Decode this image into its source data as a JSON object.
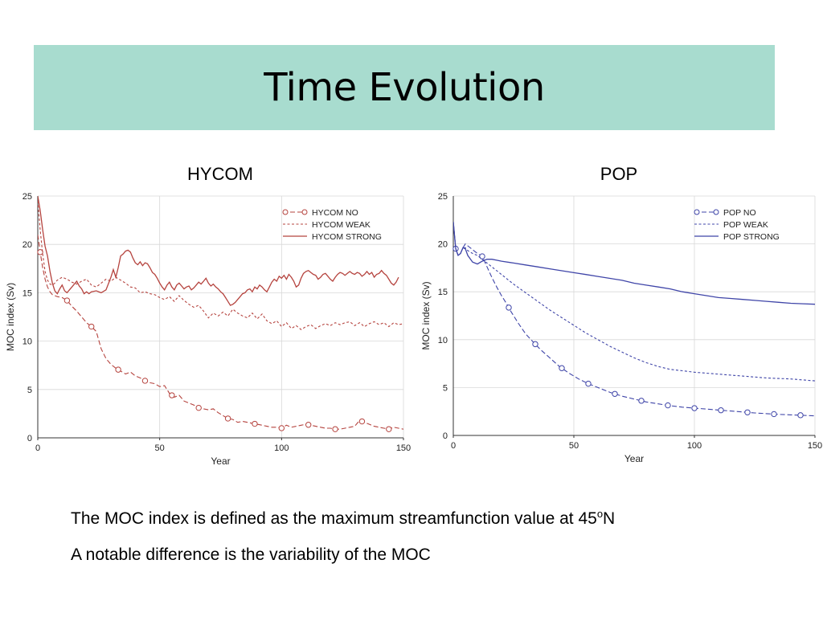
{
  "slide": {
    "title": "Time Evolution",
    "notes": {
      "line1_main": "The MOC index is defined as the maximum streamfunction value at 45",
      "line1_sup": "o",
      "line1_end": "N",
      "line2": "A notable difference is the variability of the MOC"
    }
  },
  "chart_data": [
    {
      "type": "line",
      "title": "HYCOM",
      "xlabel": "Year",
      "ylabel": "MOC index (Sv)",
      "xlim": [
        0,
        150
      ],
      "ylim": [
        0,
        25
      ],
      "xticks": [
        0,
        50,
        100,
        150
      ],
      "yticks": [
        0,
        5,
        10,
        15,
        20,
        25
      ],
      "grid": true,
      "legend_position": "top-right",
      "color": "#b5433e",
      "series": [
        {
          "name": "HYCOM NO",
          "style": "dashed-markers",
          "x": [
            0,
            1,
            2,
            3,
            4,
            5,
            6,
            8,
            10,
            12,
            14,
            16,
            18,
            20,
            22,
            24,
            26,
            28,
            30,
            32,
            34,
            36,
            38,
            40,
            42,
            44,
            46,
            48,
            50,
            52,
            54,
            56,
            58,
            60,
            62,
            64,
            66,
            68,
            70,
            72,
            74,
            76,
            78,
            80,
            82,
            84,
            86,
            88,
            90,
            92,
            94,
            96,
            98,
            100,
            102,
            104,
            106,
            108,
            110,
            112,
            114,
            116,
            118,
            120,
            122,
            124,
            126,
            128,
            130,
            132,
            134,
            136,
            138,
            140,
            142,
            144,
            146,
            148,
            150
          ],
          "values": [
            21.0,
            19.2,
            17.6,
            16.4,
            15.6,
            15.1,
            14.8,
            14.6,
            14.5,
            14.2,
            13.6,
            13.1,
            12.5,
            11.9,
            11.5,
            11.0,
            9.2,
            8.2,
            7.6,
            7.2,
            6.9,
            6.6,
            6.8,
            6.4,
            6.2,
            5.9,
            5.7,
            5.6,
            5.3,
            5.4,
            4.6,
            4.2,
            4.4,
            3.8,
            3.6,
            3.4,
            3.1,
            3.0,
            2.9,
            3.0,
            2.6,
            2.3,
            2.0,
            1.9,
            1.6,
            1.7,
            1.6,
            1.5,
            1.4,
            1.3,
            1.2,
            1.1,
            1.1,
            1.0,
            1.3,
            1.1,
            1.2,
            1.3,
            1.4,
            1.3,
            1.2,
            1.1,
            1.0,
            1.0,
            0.9,
            0.9,
            1.0,
            1.1,
            1.2,
            1.8,
            1.6,
            1.4,
            1.2,
            1.1,
            1.0,
            0.9,
            1.1,
            1.0,
            0.9
          ],
          "marker_x": [
            1,
            12,
            22,
            33,
            44,
            55,
            66,
            78,
            89,
            100,
            111,
            122,
            133,
            144
          ]
        },
        {
          "name": "HYCOM WEAK",
          "style": "dashed",
          "x": [
            0,
            1,
            2,
            3,
            4,
            5,
            6,
            7,
            8,
            10,
            12,
            14,
            16,
            18,
            20,
            22,
            24,
            26,
            28,
            30,
            32,
            34,
            36,
            38,
            40,
            42,
            44,
            46,
            48,
            50,
            52,
            54,
            56,
            58,
            60,
            62,
            64,
            66,
            68,
            70,
            72,
            74,
            76,
            78,
            80,
            82,
            84,
            86,
            88,
            90,
            92,
            94,
            96,
            98,
            100,
            102,
            104,
            106,
            108,
            110,
            112,
            114,
            116,
            118,
            120,
            122,
            124,
            126,
            128,
            130,
            132,
            134,
            136,
            138,
            140,
            142,
            144,
            146,
            148,
            150
          ],
          "values": [
            24.5,
            21.5,
            19.0,
            17.2,
            16.3,
            15.9,
            15.8,
            16.0,
            16.3,
            16.6,
            16.4,
            16.1,
            15.9,
            16.2,
            16.4,
            15.8,
            15.6,
            16.0,
            16.4,
            16.2,
            16.6,
            16.3,
            16.0,
            15.6,
            15.5,
            15.0,
            15.1,
            14.9,
            14.8,
            14.5,
            14.3,
            14.6,
            14.1,
            14.7,
            14.2,
            13.8,
            13.5,
            13.7,
            13.1,
            12.4,
            12.9,
            12.6,
            13.0,
            12.6,
            13.3,
            12.9,
            12.6,
            12.4,
            12.9,
            12.3,
            12.8,
            12.1,
            11.8,
            12.1,
            11.5,
            11.9,
            11.3,
            11.6,
            11.2,
            11.5,
            11.7,
            11.3,
            11.6,
            11.8,
            11.6,
            11.9,
            11.7,
            11.9,
            12.0,
            11.6,
            11.9,
            11.5,
            11.8,
            12.0,
            11.7,
            11.9,
            11.5,
            11.9,
            11.7,
            11.8
          ]
        },
        {
          "name": "HYCOM STRONG",
          "style": "solid",
          "x": [
            0,
            1,
            2,
            3,
            4,
            5,
            6,
            7,
            8,
            9,
            10,
            11,
            12,
            13,
            14,
            15,
            16,
            17,
            18,
            19,
            20,
            21,
            22,
            24,
            26,
            28,
            30,
            31,
            32,
            33,
            34,
            35,
            36,
            37,
            38,
            39,
            40,
            41,
            42,
            43,
            44,
            45,
            46,
            47,
            48,
            49,
            50,
            51,
            52,
            53,
            54,
            55,
            56,
            57,
            58,
            59,
            60,
            61,
            62,
            63,
            64,
            65,
            66,
            67,
            68,
            69,
            70,
            71,
            72,
            73,
            74,
            75,
            76,
            77,
            78,
            79,
            80,
            81,
            82,
            83,
            84,
            85,
            86,
            87,
            88,
            89,
            90,
            91,
            92,
            93,
            94,
            95,
            96,
            97,
            98,
            99,
            100,
            101,
            102,
            103,
            104,
            105,
            106,
            107,
            108,
            109,
            110,
            111,
            112,
            113,
            114,
            115,
            116,
            117,
            118,
            119,
            120,
            121,
            122,
            123,
            124,
            125,
            126,
            127,
            128,
            129,
            130,
            131,
            132,
            133,
            134,
            135,
            136,
            137,
            138,
            139,
            140,
            141,
            142,
            143,
            144,
            145,
            146,
            147,
            148
          ],
          "values": [
            25.0,
            23.5,
            21.5,
            19.8,
            18.8,
            17.2,
            16.0,
            15.2,
            14.9,
            15.4,
            15.8,
            15.2,
            15.0,
            15.3,
            15.6,
            15.9,
            16.2,
            15.7,
            15.4,
            14.9,
            15.1,
            14.9,
            15.1,
            15.2,
            15.0,
            15.3,
            16.6,
            17.4,
            16.6,
            17.6,
            18.8,
            19.0,
            19.3,
            19.4,
            19.2,
            18.6,
            18.1,
            17.9,
            18.2,
            17.8,
            18.1,
            18.0,
            17.6,
            17.1,
            16.9,
            16.5,
            16.0,
            15.6,
            15.3,
            15.8,
            16.1,
            15.6,
            15.3,
            15.8,
            16.0,
            15.7,
            15.4,
            15.6,
            15.7,
            15.3,
            15.5,
            15.8,
            16.1,
            15.9,
            16.2,
            16.5,
            16.0,
            15.7,
            15.9,
            15.6,
            15.4,
            15.1,
            14.9,
            14.5,
            14.1,
            13.7,
            13.8,
            14.0,
            14.3,
            14.6,
            14.9,
            15.0,
            15.3,
            15.4,
            15.1,
            15.6,
            15.4,
            15.8,
            15.6,
            15.3,
            15.1,
            15.6,
            16.1,
            16.4,
            16.2,
            16.7,
            16.5,
            16.8,
            16.4,
            16.9,
            16.6,
            16.2,
            15.6,
            15.8,
            16.5,
            17.0,
            17.2,
            17.3,
            17.1,
            16.9,
            16.8,
            16.4,
            16.6,
            16.9,
            17.0,
            16.7,
            16.4,
            16.2,
            16.6,
            16.9,
            17.1,
            17.0,
            16.8,
            17.0,
            17.2,
            17.0,
            16.9,
            17.1,
            17.0,
            16.7,
            16.9,
            17.2,
            16.9,
            17.1,
            16.6,
            16.9,
            17.0,
            17.3,
            17.0,
            16.8,
            16.4,
            16.0,
            15.8,
            16.1,
            16.6
          ]
        }
      ]
    },
    {
      "type": "line",
      "title": "POP",
      "xlabel": "Year",
      "ylabel": "MOC index (Sv)",
      "xlim": [
        0,
        150
      ],
      "ylim": [
        0,
        25
      ],
      "xticks": [
        0,
        50,
        100,
        150
      ],
      "yticks": [
        0,
        5,
        10,
        15,
        20,
        25
      ],
      "grid": true,
      "legend_position": "top-right",
      "color": "#3f45a8",
      "series": [
        {
          "name": "POP NO",
          "style": "dashed-markers",
          "x": [
            0,
            1,
            2,
            3,
            4,
            5,
            6,
            8,
            10,
            12,
            14,
            16,
            18,
            20,
            22,
            24,
            27,
            30,
            33,
            36,
            40,
            44,
            48,
            52,
            56,
            60,
            65,
            70,
            75,
            80,
            85,
            90,
            95,
            100,
            105,
            110,
            115,
            120,
            125,
            130,
            135,
            140,
            145,
            150
          ],
          "values": [
            22.3,
            19.5,
            18.8,
            19.0,
            19.6,
            20.0,
            19.8,
            19.4,
            19.0,
            18.7,
            17.6,
            16.5,
            15.5,
            14.6,
            13.8,
            12.9,
            11.7,
            10.6,
            9.8,
            9.0,
            8.1,
            7.2,
            6.5,
            5.9,
            5.4,
            5.0,
            4.5,
            4.1,
            3.8,
            3.5,
            3.3,
            3.1,
            2.95,
            2.85,
            2.75,
            2.65,
            2.55,
            2.45,
            2.35,
            2.27,
            2.2,
            2.15,
            2.1,
            2.05
          ],
          "marker_x": [
            1,
            12,
            23,
            34,
            45,
            56,
            67,
            78,
            89,
            100,
            111,
            122,
            133,
            144
          ]
        },
        {
          "name": "POP WEAK",
          "style": "dashed",
          "x": [
            0,
            1,
            2,
            3,
            4,
            5,
            6,
            8,
            10,
            12,
            15,
            20,
            25,
            30,
            35,
            40,
            45,
            50,
            55,
            60,
            65,
            70,
            75,
            80,
            85,
            90,
            95,
            100,
            105,
            110,
            115,
            120,
            125,
            130,
            135,
            140,
            145,
            150
          ],
          "values": [
            22.3,
            19.5,
            18.8,
            19.0,
            19.6,
            19.6,
            19.3,
            19.0,
            18.8,
            18.4,
            17.8,
            16.8,
            15.8,
            14.9,
            14.0,
            13.1,
            12.3,
            11.5,
            10.7,
            10.0,
            9.3,
            8.7,
            8.1,
            7.6,
            7.2,
            6.9,
            6.75,
            6.6,
            6.5,
            6.4,
            6.3,
            6.2,
            6.1,
            6.0,
            5.95,
            5.9,
            5.8,
            5.7
          ]
        },
        {
          "name": "POP STRONG",
          "style": "solid",
          "x": [
            0,
            1,
            2,
            3,
            4,
            5,
            6,
            8,
            10,
            12,
            14,
            16,
            18,
            20,
            25,
            30,
            35,
            40,
            45,
            50,
            55,
            60,
            65,
            70,
            75,
            80,
            85,
            90,
            95,
            100,
            105,
            110,
            115,
            120,
            125,
            130,
            135,
            140,
            145,
            150
          ],
          "values": [
            22.3,
            19.5,
            18.8,
            19.0,
            19.6,
            19.5,
            18.8,
            18.1,
            17.9,
            18.2,
            18.4,
            18.4,
            18.3,
            18.2,
            18.0,
            17.8,
            17.6,
            17.4,
            17.2,
            17.0,
            16.8,
            16.6,
            16.4,
            16.2,
            15.9,
            15.7,
            15.5,
            15.3,
            15.0,
            14.8,
            14.6,
            14.4,
            14.3,
            14.2,
            14.1,
            14.0,
            13.9,
            13.8,
            13.75,
            13.7
          ]
        }
      ]
    }
  ]
}
